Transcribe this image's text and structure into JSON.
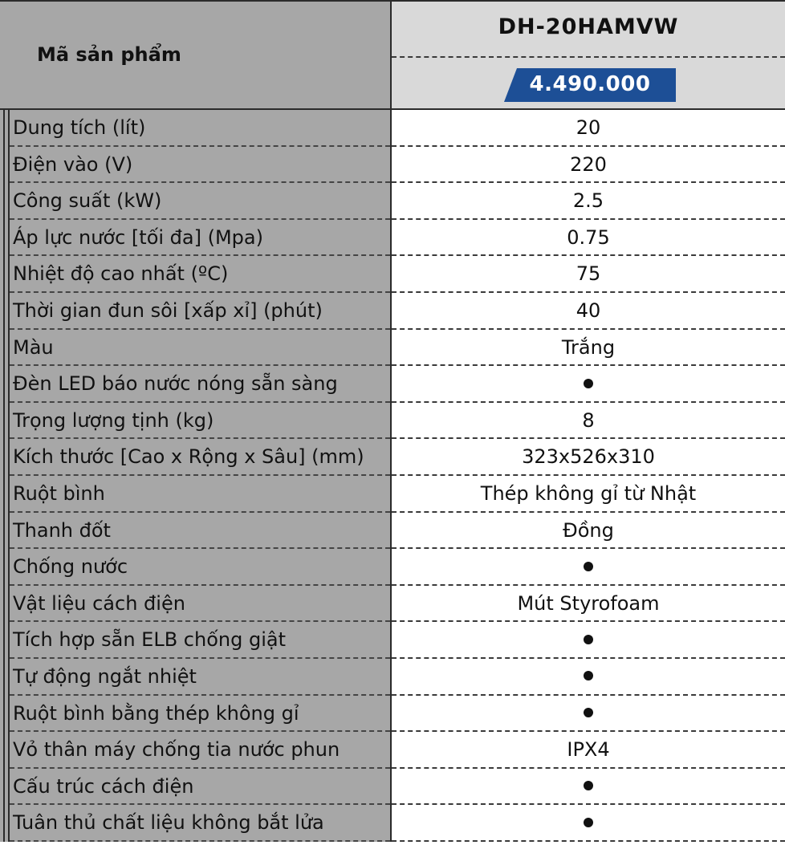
{
  "header": {
    "product_code_label": "Mã sản phẩm",
    "model": "DH-20HAMVW",
    "price": "4.490.000"
  },
  "specs": [
    {
      "label": "Dung tích (lít)",
      "value": "20",
      "dot": false
    },
    {
      "label": "Điện vào (V)",
      "value": "220",
      "dot": false
    },
    {
      "label": "Công suất (kW)",
      "value": "2.5",
      "dot": false
    },
    {
      "label": "Áp lực nước [tối đa] (Mpa)",
      "value": "0.75",
      "dot": false
    },
    {
      "label": "Nhiệt độ cao nhất (ºC)",
      "value": "75",
      "dot": false
    },
    {
      "label": "Thời gian đun sôi [xấp xỉ] (phút)",
      "value": "40",
      "dot": false
    },
    {
      "label": "Màu",
      "value": "Trắng",
      "dot": false
    },
    {
      "label": "Đèn LED báo nước nóng sẵn sàng",
      "value": "",
      "dot": true
    },
    {
      "label": "Trọng lượng tịnh (kg)",
      "value": "8",
      "dot": false
    },
    {
      "label": "Kích thước [Cao x Rộng x Sâu] (mm)",
      "value": "323x526x310",
      "dot": false
    },
    {
      "label": "Ruột bình",
      "value": "Thép không gỉ từ Nhật",
      "dot": false
    },
    {
      "label": "Thanh đốt",
      "value": "Đồng",
      "dot": false
    },
    {
      "label": "Chống nước",
      "value": "",
      "dot": true
    },
    {
      "label": "Vật liệu cách điện",
      "value": "Mút Styrofoam",
      "dot": false
    },
    {
      "label": "Tích hợp sẵn ELB chống giật",
      "value": "",
      "dot": true
    },
    {
      "label": "Tự động ngắt nhiệt",
      "value": "",
      "dot": true
    },
    {
      "label": "Ruột bình bằng thép không gỉ",
      "value": "",
      "dot": true
    },
    {
      "label": "Vỏ thân máy chống tia nước phun",
      "value": "IPX4",
      "dot": false
    },
    {
      "label": "Cấu trúc cách điện",
      "value": "",
      "dot": true
    },
    {
      "label": "Tuân thủ chất liệu không bắt lửa",
      "value": "",
      "dot": true
    }
  ],
  "colors": {
    "label_bg": "#a7a7a7",
    "header_right_bg": "#d9d9d9",
    "price_bg": "#1d4f96"
  }
}
